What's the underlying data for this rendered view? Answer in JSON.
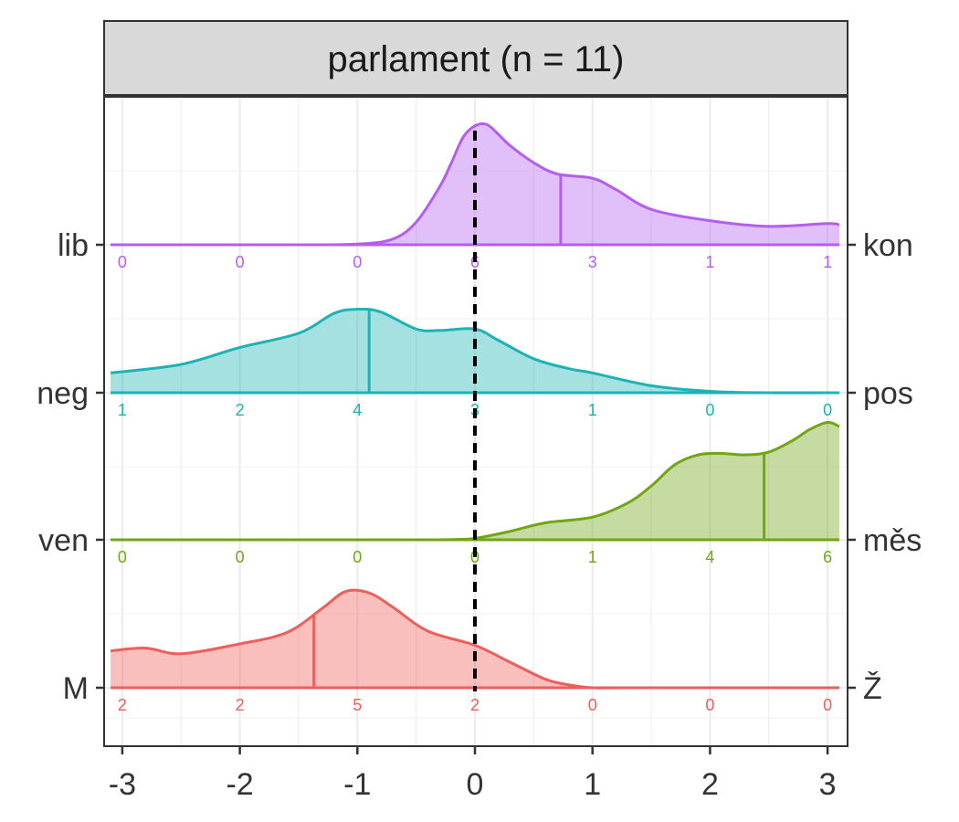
{
  "chart_data": {
    "type": "area",
    "title": "parlament (n = 11)",
    "xlim": [
      -3.1,
      3.1
    ],
    "x_ticks": [
      -3,
      -2,
      -1,
      0,
      1,
      2,
      3
    ],
    "x_tick_labels": [
      "-3",
      "-2",
      "-1",
      "0",
      "1",
      "2",
      "3"
    ],
    "reference_line_x": 0,
    "grid": true,
    "count_positions": [
      -3,
      -2,
      -1,
      0,
      1,
      2,
      3
    ],
    "series": [
      {
        "left_label": "lib",
        "right_label": "kon",
        "color": "#B45EF0",
        "median": 0.73,
        "counts": [
          "0",
          "0",
          "0",
          "6",
          "3",
          "1",
          "1"
        ],
        "density_x": [
          -3.1,
          -1.5,
          -1.0,
          -0.7,
          -0.5,
          -0.3,
          -0.2,
          -0.1,
          0.0,
          0.1,
          0.2,
          0.3,
          0.5,
          0.7,
          1.0,
          1.2,
          1.5,
          2.0,
          2.5,
          3.0,
          3.1
        ],
        "density_y": [
          0.0,
          0.0,
          0.005,
          0.04,
          0.16,
          0.41,
          0.58,
          0.76,
          0.84,
          0.85,
          0.78,
          0.7,
          0.58,
          0.5,
          0.47,
          0.39,
          0.25,
          0.17,
          0.13,
          0.15,
          0.14
        ]
      },
      {
        "left_label": "neg",
        "right_label": "pos",
        "color": "#1DB3B5",
        "median": -0.9,
        "counts": [
          "1",
          "2",
          "4",
          "3",
          "1",
          "0",
          "0"
        ],
        "density_x": [
          -3.1,
          -2.5,
          -2.0,
          -1.5,
          -1.2,
          -1.0,
          -0.8,
          -0.5,
          -0.3,
          0.0,
          0.2,
          0.5,
          0.8,
          1.0,
          1.5,
          2.0,
          2.5,
          3.1
        ],
        "density_y": [
          0.14,
          0.2,
          0.32,
          0.42,
          0.56,
          0.59,
          0.57,
          0.45,
          0.44,
          0.45,
          0.37,
          0.24,
          0.17,
          0.14,
          0.05,
          0.01,
          0.0,
          0.0
        ]
      },
      {
        "left_label": "ven",
        "right_label": "měs",
        "color": "#71A613",
        "median": 2.46,
        "counts": [
          "0",
          "0",
          "0",
          "0",
          "1",
          "4",
          "6"
        ],
        "density_x": [
          -3.1,
          -1.0,
          -0.5,
          -0.2,
          0.0,
          0.3,
          0.6,
          1.0,
          1.3,
          1.5,
          1.7,
          1.9,
          2.1,
          2.3,
          2.5,
          2.7,
          2.85,
          3.0,
          3.1
        ],
        "density_y": [
          0.0,
          0.0,
          0.0,
          0.002,
          0.01,
          0.06,
          0.12,
          0.16,
          0.26,
          0.38,
          0.53,
          0.6,
          0.61,
          0.6,
          0.62,
          0.7,
          0.78,
          0.83,
          0.8
        ]
      },
      {
        "left_label": "M",
        "right_label": "Ž",
        "color": "#EE5E5B",
        "median": -1.37,
        "counts": [
          "2",
          "2",
          "5",
          "2",
          "0",
          "0",
          "0"
        ],
        "density_x": [
          -3.1,
          -2.8,
          -2.5,
          -2.0,
          -1.6,
          -1.3,
          -1.1,
          -0.9,
          -0.7,
          -0.4,
          0.0,
          0.3,
          0.6,
          0.8,
          1.0,
          1.3,
          2.0,
          3.1
        ],
        "density_y": [
          0.26,
          0.28,
          0.24,
          0.31,
          0.39,
          0.56,
          0.68,
          0.67,
          0.57,
          0.4,
          0.3,
          0.18,
          0.06,
          0.02,
          0.0,
          0.0,
          0.0,
          0.0
        ]
      }
    ]
  }
}
